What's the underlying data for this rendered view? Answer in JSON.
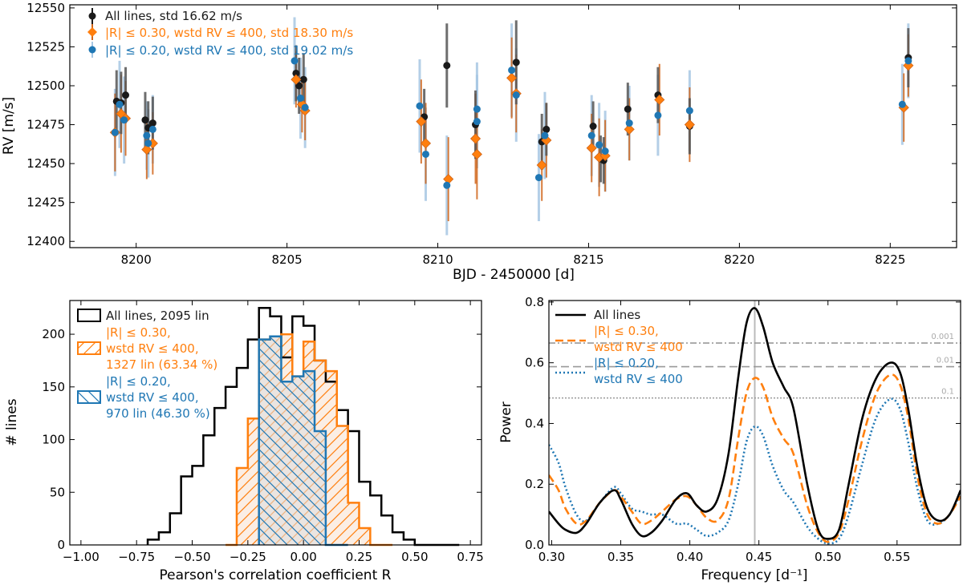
{
  "colors": {
    "black": "#1a1a1a",
    "orange": "#ff7f0e",
    "orange_dark": "#d0651a",
    "blue": "#1f77b4",
    "blue_light": "#a7c7e3",
    "gray": "#666666",
    "hatch_fill": "#fbeee4"
  },
  "chart_data": [
    {
      "type": "scatter",
      "title": "",
      "xlabel": "BJD - 2450000 [d]",
      "ylabel": "RV [m/s]",
      "xlim": [
        8197.8,
        8227.2
      ],
      "ylim": [
        12396,
        12552
      ],
      "xticks": [
        8200,
        8205,
        8210,
        8215,
        8220,
        8225
      ],
      "yticks": [
        12400,
        12425,
        12450,
        12475,
        12500,
        12525,
        12550
      ],
      "legend": [
        {
          "label": "All lines, std 16.62 m/s",
          "color": "black"
        },
        {
          "label": "|R| ≤ 0.30, wstd RV ≤ 400, std 18.30 m/s",
          "color": "orange"
        },
        {
          "label": "|R| ≤ 0.20, wstd RV ≤ 400, std 19.02 m/s",
          "color": "blue"
        }
      ],
      "series": [
        {
          "name": "All lines",
          "marker": "circle",
          "points": [
            [
              8199.35,
              12490,
              20
            ],
            [
              8199.5,
              12489,
              20
            ],
            [
              8199.65,
              12494,
              18
            ],
            [
              8200.3,
              12478,
              18
            ],
            [
              8200.4,
              12473,
              17
            ],
            [
              8200.55,
              12476,
              17
            ],
            [
              8205.3,
              12508,
              18
            ],
            [
              8205.4,
              12500,
              18
            ],
            [
              8205.55,
              12504,
              17
            ],
            [
              8209.55,
              12480,
              18
            ],
            [
              8210.3,
              12513,
              27
            ],
            [
              8211.25,
              12475,
              22
            ],
            [
              8212.6,
              12515,
              27
            ],
            [
              8213.45,
              12464,
              18
            ],
            [
              8213.6,
              12472,
              17
            ],
            [
              8215.15,
              12474,
              16
            ],
            [
              8215.4,
              12453,
              15
            ],
            [
              8215.5,
              12452,
              15
            ],
            [
              8216.3,
              12485,
              17
            ],
            [
              8217.3,
              12494,
              18
            ],
            [
              8218.35,
              12474,
              18
            ],
            [
              8225.6,
              12518,
              19
            ]
          ]
        },
        {
          "name": "|R| <= 0.30, wstd RV <= 400",
          "marker": "diamond",
          "points": [
            [
              8199.3,
              12470,
              25
            ],
            [
              8199.5,
              12482,
              25
            ],
            [
              8199.65,
              12479,
              24
            ],
            [
              8200.35,
              12459,
              19
            ],
            [
              8200.55,
              12463,
              20
            ],
            [
              8205.3,
              12504,
              18
            ],
            [
              8205.5,
              12488,
              18
            ],
            [
              8205.6,
              12484,
              19
            ],
            [
              8209.45,
              12477,
              27
            ],
            [
              8209.6,
              12463,
              26
            ],
            [
              8210.35,
              12440,
              27
            ],
            [
              8211.25,
              12466,
              29
            ],
            [
              8211.3,
              12456,
              29
            ],
            [
              8212.45,
              12505,
              26
            ],
            [
              8212.6,
              12495,
              25
            ],
            [
              8213.45,
              12449,
              23
            ],
            [
              8213.6,
              12465,
              24
            ],
            [
              8215.1,
              12460,
              22
            ],
            [
              8215.35,
              12454,
              25
            ],
            [
              8215.55,
              12455,
              23
            ],
            [
              8216.35,
              12472,
              20
            ],
            [
              8217.35,
              12491,
              23
            ],
            [
              8218.35,
              12475,
              24
            ],
            [
              8225.45,
              12486,
              22
            ],
            [
              8225.6,
              12513,
              20
            ]
          ]
        },
        {
          "name": "|R| <= 0.20, wstd RV <= 400",
          "marker": "circle",
          "points": [
            [
              8199.3,
              12470,
              28
            ],
            [
              8199.45,
              12488,
              28
            ],
            [
              8199.6,
              12478,
              28
            ],
            [
              8200.35,
              12468,
              22
            ],
            [
              8200.4,
              12463,
              22
            ],
            [
              8200.55,
              12472,
              22
            ],
            [
              8205.25,
              12516,
              28
            ],
            [
              8205.45,
              12492,
              26
            ],
            [
              8205.6,
              12486,
              26
            ],
            [
              8209.4,
              12487,
              30
            ],
            [
              8209.6,
              12456,
              30
            ],
            [
              8210.3,
              12436,
              32
            ],
            [
              8211.3,
              12485,
              30
            ],
            [
              8211.3,
              12477,
              30
            ],
            [
              8212.45,
              12510,
              30
            ],
            [
              8212.6,
              12494,
              30
            ],
            [
              8213.35,
              12441,
              28
            ],
            [
              8213.55,
              12468,
              28
            ],
            [
              8215.1,
              12468,
              26
            ],
            [
              8215.35,
              12462,
              27
            ],
            [
              8215.55,
              12458,
              26
            ],
            [
              8216.35,
              12476,
              24
            ],
            [
              8217.3,
              12481,
              26
            ],
            [
              8218.35,
              12484,
              26
            ],
            [
              8225.4,
              12488,
              26
            ],
            [
              8225.6,
              12516,
              24
            ]
          ]
        }
      ]
    },
    {
      "type": "bar",
      "title": "",
      "xlabel": "Pearson's correlation coefficient R",
      "ylabel": "# lines",
      "xlim": [
        -1.05,
        0.8
      ],
      "ylim": [
        0,
        232
      ],
      "xticks": [
        -1.0,
        -0.75,
        -0.5,
        -0.25,
        0.0,
        0.25,
        0.5,
        0.75
      ],
      "xtick_labels": [
        "−1.00",
        "−0.75",
        "−0.50",
        "−0.25",
        "0.00",
        "0.25",
        "0.50",
        "0.75"
      ],
      "yticks": [
        0,
        50,
        100,
        150,
        200
      ],
      "bin_start": -0.7,
      "bin_width": 0.05,
      "legend": [
        {
          "lines": [
            "All lines, 2095 lin"
          ],
          "color": "black"
        },
        {
          "lines": [
            "|R| ≤ 0.30,",
            "wstd RV ≤ 400,",
            "1327 lin (63.34 %)"
          ],
          "color": "orange"
        },
        {
          "lines": [
            "|R| ≤ 0.20,",
            "wstd RV ≤ 400,",
            "970 lin (46.30 %)"
          ],
          "color": "blue"
        }
      ],
      "series": [
        {
          "name": "All lines",
          "start": -0.7,
          "values": [
            5,
            12,
            30,
            65,
            75,
            104,
            130,
            150,
            168,
            195,
            225,
            217,
            178,
            217,
            208,
            175,
            155,
            128,
            108,
            60,
            47,
            28,
            12,
            5,
            0,
            0,
            0,
            0
          ]
        },
        {
          "name": "|R| <= 0.30, wstd RV <= 400",
          "start": -0.35,
          "values": [
            0,
            73,
            120,
            195,
            198,
            200,
            160,
            193,
            175,
            165,
            113,
            40,
            16,
            0,
            0
          ]
        },
        {
          "name": "|R| <= 0.20, wstd RV <= 400",
          "start": -0.2,
          "values": [
            195,
            198,
            155,
            160,
            165,
            108,
            0,
            0
          ]
        }
      ]
    },
    {
      "type": "line",
      "title": "",
      "xlabel": "Frequency [d⁻¹]",
      "ylabel": "Power",
      "xlim": [
        0.298,
        0.596
      ],
      "ylim": [
        0,
        0.805
      ],
      "xticks": [
        0.3,
        0.35,
        0.4,
        0.45,
        0.5,
        0.55
      ],
      "yticks": [
        0.0,
        0.2,
        0.4,
        0.6,
        0.8
      ],
      "vline": 0.447,
      "fap_levels": [
        {
          "label": "0.001",
          "value": 0.665,
          "style": "dashdot"
        },
        {
          "label": "0.01",
          "value": 0.587,
          "style": "dashed"
        },
        {
          "label": "0.1",
          "value": 0.484,
          "style": "dotted"
        }
      ],
      "legend": [
        {
          "lines": [
            "All lines"
          ],
          "color": "black"
        },
        {
          "lines": [
            "|R| ≤ 0.30,",
            "wstd RV ≤ 400"
          ],
          "color": "orange"
        },
        {
          "lines": [
            "|R| ≤ 0.20,",
            "wstd RV ≤ 400"
          ],
          "color": "blue"
        }
      ],
      "series": [
        {
          "name": "All lines",
          "x": [
            0.298,
            0.305,
            0.31,
            0.318,
            0.325,
            0.335,
            0.345,
            0.35,
            0.358,
            0.365,
            0.372,
            0.38,
            0.39,
            0.398,
            0.405,
            0.412,
            0.42,
            0.428,
            0.435,
            0.441,
            0.447,
            0.453,
            0.46,
            0.468,
            0.475,
            0.485,
            0.493,
            0.5,
            0.508,
            0.515,
            0.525,
            0.535,
            0.545,
            0.552,
            0.558,
            0.565,
            0.572,
            0.58,
            0.588,
            0.596
          ],
          "y": [
            0.11,
            0.07,
            0.05,
            0.04,
            0.07,
            0.14,
            0.18,
            0.15,
            0.07,
            0.03,
            0.04,
            0.08,
            0.15,
            0.17,
            0.13,
            0.11,
            0.15,
            0.3,
            0.55,
            0.73,
            0.78,
            0.72,
            0.6,
            0.52,
            0.45,
            0.2,
            0.05,
            0.02,
            0.05,
            0.2,
            0.42,
            0.55,
            0.6,
            0.57,
            0.45,
            0.25,
            0.12,
            0.08,
            0.1,
            0.18
          ]
        },
        {
          "name": "|R| <= 0.30, wstd RV <= 400",
          "x": [
            0.298,
            0.305,
            0.31,
            0.318,
            0.325,
            0.335,
            0.345,
            0.35,
            0.358,
            0.365,
            0.372,
            0.38,
            0.39,
            0.398,
            0.405,
            0.412,
            0.42,
            0.428,
            0.435,
            0.441,
            0.447,
            0.453,
            0.46,
            0.468,
            0.475,
            0.485,
            0.493,
            0.5,
            0.508,
            0.515,
            0.525,
            0.535,
            0.545,
            0.552,
            0.558,
            0.565,
            0.572,
            0.58,
            0.588,
            0.596
          ],
          "y": [
            0.23,
            0.18,
            0.12,
            0.07,
            0.08,
            0.14,
            0.18,
            0.16,
            0.11,
            0.07,
            0.08,
            0.11,
            0.15,
            0.16,
            0.13,
            0.09,
            0.08,
            0.15,
            0.35,
            0.5,
            0.55,
            0.52,
            0.42,
            0.35,
            0.3,
            0.13,
            0.04,
            0.01,
            0.04,
            0.15,
            0.35,
            0.5,
            0.56,
            0.53,
            0.42,
            0.22,
            0.1,
            0.07,
            0.1,
            0.16
          ]
        },
        {
          "name": "|R| <= 0.20, wstd RV <= 400",
          "x": [
            0.298,
            0.305,
            0.31,
            0.318,
            0.325,
            0.335,
            0.345,
            0.35,
            0.358,
            0.365,
            0.372,
            0.38,
            0.39,
            0.398,
            0.405,
            0.412,
            0.42,
            0.428,
            0.435,
            0.441,
            0.447,
            0.453,
            0.46,
            0.468,
            0.475,
            0.485,
            0.493,
            0.5,
            0.508,
            0.515,
            0.525,
            0.535,
            0.545,
            0.552,
            0.558,
            0.565,
            0.572,
            0.58,
            0.588,
            0.596
          ],
          "y": [
            0.33,
            0.27,
            0.19,
            0.1,
            0.08,
            0.14,
            0.19,
            0.17,
            0.12,
            0.11,
            0.1,
            0.1,
            0.07,
            0.07,
            0.05,
            0.03,
            0.04,
            0.08,
            0.2,
            0.34,
            0.39,
            0.36,
            0.26,
            0.18,
            0.14,
            0.06,
            0.02,
            0.005,
            0.02,
            0.1,
            0.27,
            0.42,
            0.48,
            0.45,
            0.34,
            0.18,
            0.08,
            0.07,
            0.1,
            0.17
          ]
        }
      ]
    }
  ]
}
